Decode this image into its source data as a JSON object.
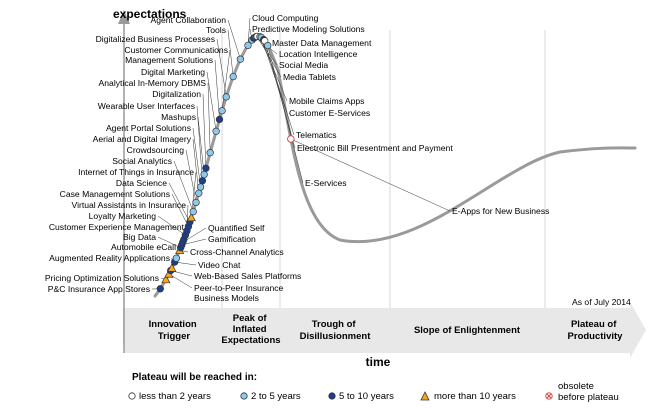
{
  "chart_data": {
    "type": "hype-cycle",
    "y_axis_label": "expectations",
    "x_axis_label": "time",
    "as_of": "As of July 2014",
    "phases": [
      {
        "line1": "Innovation",
        "line2": "Trigger",
        "line3": ""
      },
      {
        "line1": "Peak of",
        "line2": "Inflated",
        "line3": "Expectations"
      },
      {
        "line1": "Trough of",
        "line2": "Disillusionment",
        "line3": ""
      },
      {
        "line1": "Slope of Enlightenment",
        "line2": "",
        "line3": ""
      },
      {
        "line1": "Plateau of",
        "line2": "Productivity",
        "line3": ""
      }
    ],
    "legend_title": "Plateau will be reached in:",
    "legend": [
      {
        "key": "lt2",
        "label": "less than 2 years"
      },
      {
        "key": "2to5",
        "label": "2 to 5 years"
      },
      {
        "key": "5to10",
        "label": "5 to 10 years"
      },
      {
        "key": "gt10",
        "label": "more than 10 years"
      },
      {
        "key": "obsolete",
        "label1": "obsolete",
        "label2": "before plateau"
      }
    ],
    "colors": {
      "curve": "#9a9a9a",
      "lt2": "#ffffff",
      "2to5": "#8ec8ea",
      "5to10": "#1c3f8c",
      "gt10": "#f5a623",
      "obsolete": "#d63a3a",
      "band": "#e8e8e8",
      "grid": "#d9d9d9"
    },
    "technologies": [
      {
        "name": "P&C Insurance App Stores",
        "t": 0.04,
        "cat": "5to10",
        "side": "left"
      },
      {
        "name": "Pricing Optimization Solutions",
        "t": 0.085,
        "cat": "gt10",
        "side": "left"
      },
      {
        "name": "Peer-to-Peer Insurance Business Models",
        "t": 0.11,
        "cat": "gt10",
        "side": "right"
      },
      {
        "name": "Web-Based Sales Platforms",
        "t": 0.125,
        "cat": "5to10",
        "side": "right"
      },
      {
        "name": "Augmented Reality Applications",
        "t": 0.135,
        "cat": "gt10",
        "side": "left"
      },
      {
        "name": "Video Chat",
        "t": 0.16,
        "cat": "5to10",
        "side": "right"
      },
      {
        "name": "Automobile eCall",
        "t": 0.175,
        "cat": "2to5",
        "side": "left"
      },
      {
        "name": "Cross-Channel Analytics",
        "t": 0.205,
        "cat": "gt10",
        "side": "right"
      },
      {
        "name": "Big Data",
        "t": 0.215,
        "cat": "5to10",
        "side": "left"
      },
      {
        "name": "Gamification",
        "t": 0.225,
        "cat": "5to10",
        "side": "right"
      },
      {
        "name": "Quantified Self",
        "t": 0.235,
        "cat": "5to10",
        "side": "right"
      },
      {
        "name": "Customer Experience Management",
        "t": 0.245,
        "cat": "5to10",
        "side": "left"
      },
      {
        "name": "Loyalty Marketing",
        "t": 0.26,
        "cat": "5to10",
        "side": "left"
      },
      {
        "name": "Virtual Assistants in Insurance",
        "t": 0.275,
        "cat": "5to10",
        "side": "left"
      },
      {
        "name": "Case Management Solutions",
        "t": 0.29,
        "cat": "5to10",
        "side": "left"
      },
      {
        "name": "Data Science",
        "t": 0.305,
        "cat": "5to10",
        "side": "left"
      },
      {
        "name": "Internet of Things in Insurance",
        "t": 0.32,
        "cat": "gt10",
        "side": "left"
      },
      {
        "name": "Social Analytics",
        "t": 0.34,
        "cat": "2to5",
        "side": "left"
      },
      {
        "name": "Crowdsourcing",
        "t": 0.37,
        "cat": "2to5",
        "side": "left"
      },
      {
        "name": "Aerial and Digital Imagery",
        "t": 0.4,
        "cat": "2to5",
        "side": "left"
      },
      {
        "name": "Agent Portal Solutions",
        "t": 0.42,
        "cat": "2to5",
        "side": "left"
      },
      {
        "name": "Wearable User Interfaces",
        "t": 0.44,
        "cat": "5to10",
        "side": "left"
      },
      {
        "name": "Mashups",
        "t": 0.46,
        "cat": "2to5",
        "side": "left"
      },
      {
        "name": "Digitalization",
        "t": 0.48,
        "cat": "5to10",
        "side": "left"
      },
      {
        "name": "Analytical In-Memory DBMS",
        "t": 0.53,
        "cat": "2to5",
        "side": "left"
      },
      {
        "name": "Digital Marketing",
        "t": 0.6,
        "cat": "2to5",
        "side": "left"
      },
      {
        "name": "Management Solutions",
        "t": 0.64,
        "cat": "5to10",
        "side": "left"
      },
      {
        "name": "Customer Communications",
        "t": 0.67,
        "cat": "2to5",
        "side": "left"
      },
      {
        "name": "Digitalized Business Processes",
        "t": 0.72,
        "cat": "2to5",
        "side": "left"
      },
      {
        "name": "Tools",
        "t": 0.8,
        "cat": "2to5",
        "side": "left"
      },
      {
        "name": "Agent Collaboration",
        "t": 0.88,
        "cat": "2to5",
        "side": "left"
      },
      {
        "name": "Cloud Computing",
        "t": 0.96,
        "cat": "2to5",
        "side": "right"
      },
      {
        "name": "Predictive Modeling Solutions",
        "t": 1.0,
        "cat": "2to5",
        "side": "right"
      },
      {
        "name": "Master Data Management",
        "t": 1.06,
        "cat": "5to10",
        "side": "right"
      },
      {
        "name": "Location Intelligence",
        "t": 1.12,
        "cat": "2to5",
        "side": "right"
      },
      {
        "name": "Social Media",
        "t": 1.15,
        "cat": "2to5",
        "side": "right"
      },
      {
        "name": "Media Tablets",
        "t": 1.18,
        "cat": "lt2",
        "side": "right"
      },
      {
        "name": "Mobile Claims Apps",
        "t": 1.28,
        "cat": "2to5",
        "side": "right"
      },
      {
        "name": "Customer E-Services",
        "t": 1.33,
        "cat": "2to5",
        "side": "right"
      },
      {
        "name": "Telematics",
        "t": 1.42,
        "cat": "5to10",
        "side": "right"
      },
      {
        "name": "Electronic Bill Presentment and Payment",
        "t": 1.46,
        "cat": "lt2",
        "side": "right"
      },
      {
        "name": "E-Services",
        "t": 1.58,
        "cat": "2to5",
        "side": "right"
      },
      {
        "name": "E-Apps for New Business",
        "t": 2.32,
        "cat": "obsolete",
        "side": "right"
      }
    ]
  }
}
